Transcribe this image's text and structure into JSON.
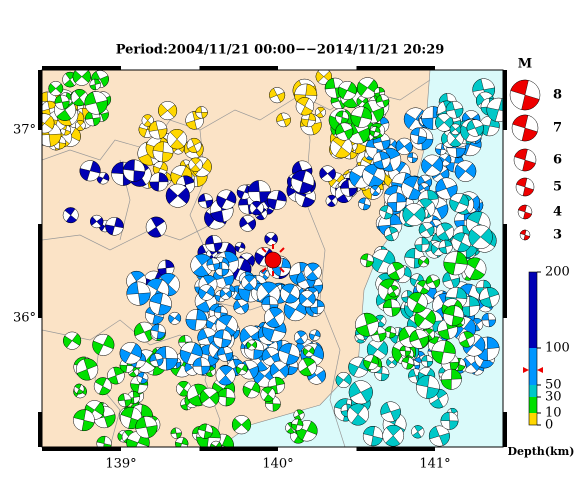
{
  "header": {
    "title": "Period:2004/11/21 00:00−−2014/11/21 20:29"
  },
  "map": {
    "lat_labels": [
      "37°",
      "36°"
    ],
    "lon_labels": [
      "139°",
      "140°",
      "141°"
    ]
  },
  "legend": {
    "title": "M",
    "magnitudes": [
      8,
      7,
      6,
      5,
      4,
      3
    ]
  },
  "colorbar": {
    "ticks": [
      200,
      100,
      50,
      30,
      10,
      0
    ],
    "label": "Depth(km)"
  }
}
